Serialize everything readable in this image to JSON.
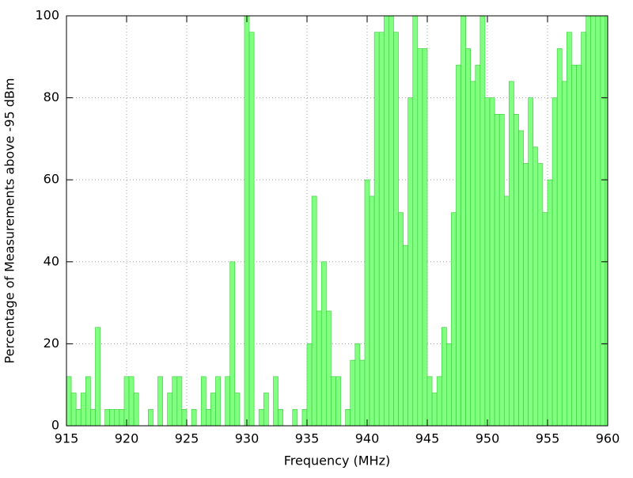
{
  "chart_data": {
    "type": "bar",
    "xlabel": "Frequency (MHz)",
    "ylabel": "Percentage of Measurements above -95 dBm",
    "x": [
      915.0,
      915.4,
      915.8,
      916.2,
      916.6,
      917.0,
      917.4,
      917.8,
      918.2,
      918.6,
      919.0,
      919.4,
      919.8,
      920.2,
      920.6,
      921.0,
      921.4,
      921.8,
      922.2,
      922.6,
      923.0,
      923.4,
      923.8,
      924.2,
      924.6,
      925.0,
      925.4,
      925.8,
      926.2,
      926.6,
      927.0,
      927.4,
      927.8,
      928.2,
      928.6,
      929.0,
      929.4,
      929.8,
      930.2,
      930.6,
      931.0,
      931.4,
      931.8,
      932.2,
      932.6,
      933.0,
      933.4,
      933.8,
      934.2,
      934.6,
      935.0,
      935.4,
      935.8,
      936.2,
      936.6,
      937.0,
      937.4,
      937.8,
      938.2,
      938.6,
      939.0,
      939.4,
      939.8,
      940.2,
      940.6,
      941.0,
      941.4,
      941.8,
      942.2,
      942.6,
      943.0,
      943.4,
      943.8,
      944.2,
      944.6,
      945.0,
      945.4,
      945.8,
      946.2,
      946.6,
      947.0,
      947.4,
      947.8,
      948.2,
      948.6,
      949.0,
      949.4,
      949.8,
      950.2,
      950.6,
      951.0,
      951.4,
      951.8,
      952.2,
      952.6,
      953.0,
      953.4,
      953.8,
      954.2,
      954.6,
      955.0,
      955.4,
      955.8,
      956.2,
      956.6,
      957.0,
      957.4,
      957.8,
      958.2,
      958.6,
      959.0,
      959.4,
      959.8
    ],
    "values": [
      12,
      8,
      4,
      8,
      12,
      4,
      24,
      0,
      4,
      4,
      4,
      4,
      12,
      12,
      8,
      0,
      0,
      4,
      0,
      12,
      0,
      8,
      12,
      12,
      4,
      0,
      4,
      0,
      12,
      4,
      8,
      12,
      0,
      12,
      40,
      8,
      0,
      100,
      96,
      0,
      4,
      8,
      0,
      12,
      4,
      0,
      0,
      4,
      0,
      4,
      20,
      56,
      28,
      40,
      28,
      12,
      12,
      0,
      4,
      16,
      20,
      16,
      60,
      56,
      96,
      96,
      100,
      100,
      96,
      52,
      44,
      80,
      100,
      92,
      92,
      12,
      8,
      12,
      24,
      20,
      52,
      88,
      100,
      92,
      84,
      88,
      100,
      80,
      80,
      76,
      76,
      56,
      84,
      76,
      72,
      64,
      80,
      68,
      64,
      52,
      60,
      80,
      92,
      84,
      96,
      88,
      88,
      96,
      100,
      100,
      100,
      100,
      100
    ],
    "color": "#80ff80",
    "edge_color": "#33cc33",
    "xlim": [
      915,
      960
    ],
    "xticks": [
      915,
      920,
      925,
      930,
      935,
      940,
      945,
      950,
      955,
      960
    ],
    "ylim": [
      0,
      100
    ],
    "yticks": [
      0,
      20,
      40,
      60,
      80,
      100
    ],
    "grid": true
  }
}
